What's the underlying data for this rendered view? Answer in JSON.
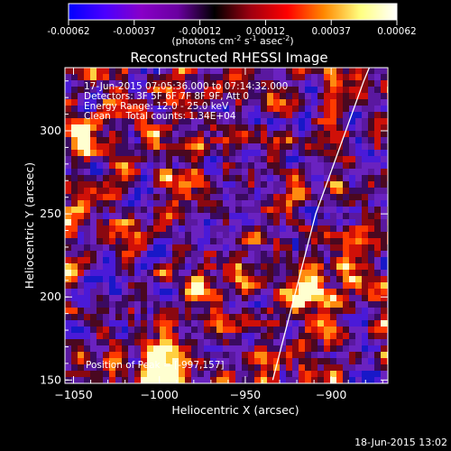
{
  "colorbar": {
    "ticks": [
      "-0.00062",
      "-0.00037",
      "-0.00012",
      "0.00012",
      "0.00037",
      "0.00062"
    ],
    "unit_prefix": "(photons cm",
    "unit_exp1": "-2",
    "unit_mid": " s",
    "unit_exp2": "-1",
    "unit_suffix": " asec",
    "unit_exp3": "-2",
    "unit_end": ")"
  },
  "chart_data": {
    "type": "heatmap",
    "title": "Reconstructed RHESSI Image",
    "xlabel": "Heliocentric X (arcsec)",
    "ylabel": "Heliocentric Y (arcsec)",
    "xlim": [
      -1055,
      -867
    ],
    "ylim": [
      148,
      338
    ],
    "x_ticks": [
      -1050,
      -1000,
      -950,
      -900
    ],
    "y_ticks": [
      150,
      200,
      250,
      300
    ],
    "x_tick_labels": [
      "−1050",
      "−1000",
      "−950",
      "−900"
    ],
    "y_tick_labels": [
      "150",
      "200",
      "250",
      "300"
    ],
    "limb_curve_x": [
      -934,
      -929,
      -924,
      -919,
      -914,
      -909,
      -902,
      -895,
      -888,
      -881,
      -875
    ],
    "limb_curve_y": [
      150,
      170,
      190,
      210,
      230,
      250,
      270,
      290,
      310,
      330,
      345
    ],
    "bright_sources": [
      {
        "x": -1000,
        "y": 157,
        "level": 1.0
      },
      {
        "x": -915,
        "y": 208,
        "level": 0.75
      },
      {
        "x": -910,
        "y": 196,
        "level": 0.7
      },
      {
        "x": -892,
        "y": 218,
        "level": 0.6
      },
      {
        "x": -1045,
        "y": 300,
        "level": 0.55
      },
      {
        "x": -975,
        "y": 200,
        "level": 0.55
      }
    ],
    "annotations": {
      "line1": "17-Jun-2015 07:05:36.000 to 07:14:32.000",
      "line2": "Detectors: 3F 5F 6F 7F 8F 9F, Att 0",
      "line3": "Energy Range: 12.0 - 25.0 keV",
      "line4": "Clean     Total counts: 1.34E+04",
      "position": "Position of Peak = [-997,157]"
    }
  },
  "timestamp": "18-Jun-2015 13:02",
  "colors": {
    "colorbar_stops": [
      "#0000ff",
      "#4b00ff",
      "#8800c8",
      "#6a00a0",
      "#000000",
      "#a00010",
      "#ff0000",
      "#ff8800",
      "#ffff80",
      "#ffffff"
    ]
  }
}
